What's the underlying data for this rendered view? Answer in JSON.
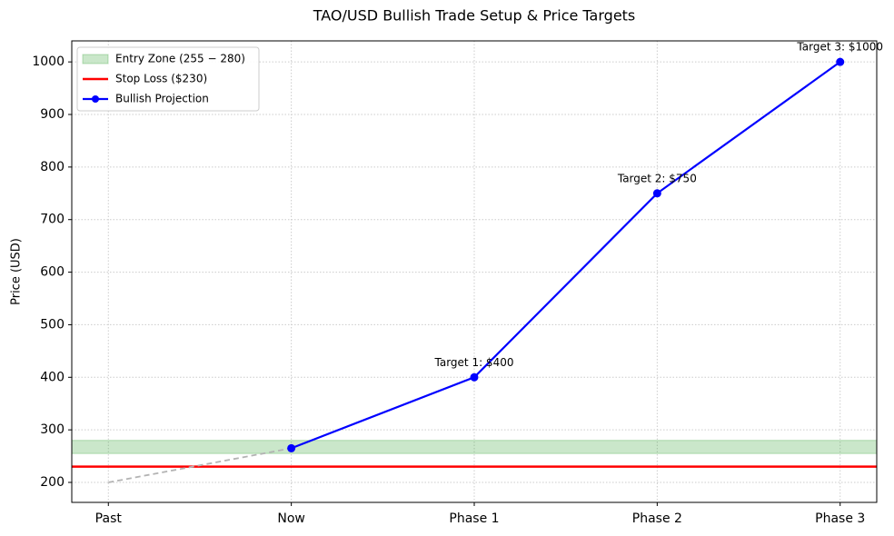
{
  "chart_data": {
    "type": "line",
    "title": "TAO/USD Bullish Trade Setup & Price Targets",
    "y_label": "Price (USD)",
    "categories": [
      "Past",
      "Now",
      "Phase 1",
      "Phase 2",
      "Phase 3"
    ],
    "xlim": [
      -0.2,
      4.2
    ],
    "series": [
      {
        "name": "Bullish Projection",
        "color": "#0000ff",
        "values": [
          null,
          265,
          400,
          750,
          1000
        ]
      }
    ],
    "trend": {
      "color": "#b3b3b3",
      "values": [
        200,
        265,
        null,
        null,
        null
      ]
    },
    "bands": [
      {
        "name": "Entry Zone (255 − 280)",
        "from": 255,
        "to": 280,
        "color": "#2ca02c"
      }
    ],
    "hlines": [
      {
        "name": "Stop Loss ($230)",
        "value": 230,
        "color": "#ff0000"
      }
    ],
    "annotations": [
      {
        "text": "Target 1: $400",
        "x": 2,
        "y": 400
      },
      {
        "text": "Target 2: $750",
        "x": 3,
        "y": 750
      },
      {
        "text": "Target 3: $1000",
        "x": 4,
        "y": 1000
      }
    ],
    "annotation_color": "#006400",
    "ylim": [
      162,
      1040
    ],
    "yticks": [
      200,
      300,
      400,
      500,
      600,
      700,
      800,
      900,
      1000
    ],
    "grid": true,
    "legend": "upper-left"
  }
}
